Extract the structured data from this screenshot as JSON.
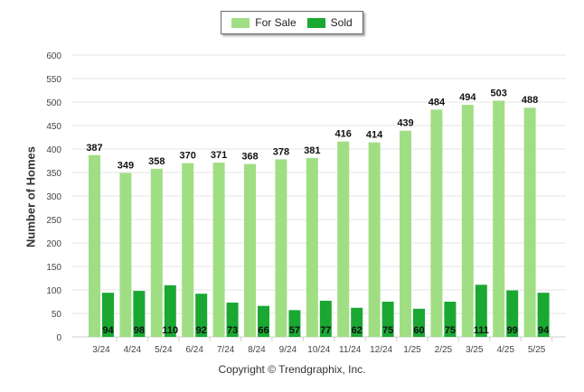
{
  "legend": {
    "for_sale_label": "For Sale",
    "sold_label": "Sold"
  },
  "copyright": "Copyright © Trendgraphix, Inc.",
  "colors": {
    "for_sale": "#a0de84",
    "sold": "#1aa833",
    "grid": "#e6e6e6",
    "axis_text": "#444444"
  },
  "chart_data": {
    "type": "bar",
    "ylabel": "Number of Homes",
    "xlabel": "",
    "ylim": [
      0,
      600
    ],
    "yticks": [
      0,
      50,
      100,
      150,
      200,
      250,
      300,
      350,
      400,
      450,
      500,
      550,
      600
    ],
    "grid": true,
    "legend_position": "top-center",
    "categories": [
      "3/24",
      "4/24",
      "5/24",
      "6/24",
      "7/24",
      "8/24",
      "9/24",
      "10/24",
      "11/24",
      "12/24",
      "1/25",
      "2/25",
      "3/25",
      "4/25",
      "5/25"
    ],
    "series": [
      {
        "name": "For Sale",
        "values": [
          387,
          349,
          358,
          370,
          371,
          368,
          378,
          381,
          416,
          414,
          439,
          484,
          494,
          503,
          488
        ]
      },
      {
        "name": "Sold",
        "values": [
          94,
          98,
          110,
          92,
          73,
          66,
          57,
          77,
          62,
          75,
          60,
          75,
          111,
          99,
          94
        ]
      }
    ]
  }
}
